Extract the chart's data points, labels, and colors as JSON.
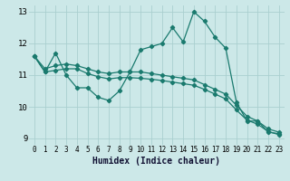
{
  "xlabel": "Humidex (Indice chaleur)",
  "xlim": [
    -0.5,
    23.5
  ],
  "ylim": [
    8.8,
    13.2
  ],
  "yticks": [
    9,
    10,
    11,
    12,
    13
  ],
  "xticks": [
    0,
    1,
    2,
    3,
    4,
    5,
    6,
    7,
    8,
    9,
    10,
    11,
    12,
    13,
    14,
    15,
    16,
    17,
    18,
    19,
    20,
    21,
    22,
    23
  ],
  "bg_color": "#cce8e8",
  "grid_color": "#aacfcf",
  "line_color": "#1a7a6e",
  "line1_y": [
    11.6,
    11.1,
    11.7,
    11.0,
    10.6,
    10.6,
    10.3,
    10.2,
    10.5,
    11.1,
    11.8,
    11.9,
    12.0,
    12.5,
    12.05,
    13.0,
    12.7,
    12.2,
    11.85,
    10.15,
    9.55,
    9.55,
    9.2,
    9.15
  ],
  "line2_y": [
    11.6,
    11.2,
    11.3,
    11.35,
    11.3,
    11.2,
    11.1,
    11.05,
    11.1,
    11.1,
    11.1,
    11.05,
    11.0,
    10.95,
    10.9,
    10.85,
    10.7,
    10.55,
    10.4,
    10.05,
    9.7,
    9.55,
    9.3,
    9.2
  ],
  "line3_y": [
    11.6,
    11.1,
    11.15,
    11.2,
    11.2,
    11.05,
    10.95,
    10.88,
    10.92,
    10.92,
    10.9,
    10.87,
    10.83,
    10.78,
    10.73,
    10.68,
    10.55,
    10.4,
    10.25,
    9.9,
    9.58,
    9.45,
    9.22,
    9.12
  ]
}
